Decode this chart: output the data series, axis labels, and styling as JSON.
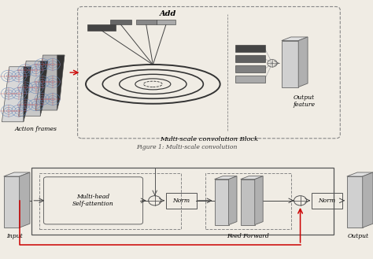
{
  "title": "Figure 1: Multi-scale convolution",
  "top_label_action": "Action frames",
  "top_label_block": "Multi-scale convolution Block",
  "top_label_add": "Add",
  "top_label_output": "Output\nfeature",
  "bottom_label_input": "Input",
  "bottom_label_output": "Output",
  "bottom_label_ff": "Feed Forward",
  "bottom_norm1": "Norm",
  "bottom_norm2": "Norm",
  "bottom_mhsa": "Multi-head\nSelf-attention",
  "bg_color": "#f0ece4",
  "frame_colors": [
    "#c0c0c0",
    "#b0b0b0",
    "#a0a0a0"
  ],
  "bar_colors_top": [
    "#444444",
    "#666666",
    "#888888",
    "#aaaaaa"
  ],
  "bar_colors_out": [
    "#444444",
    "#606060",
    "#808080",
    "#aaaaaa"
  ],
  "ellipse_color": "#222222",
  "dashed_color": "#888888",
  "solid_color": "#555555",
  "red_color": "#cc0000",
  "circle_color": "#6688bb"
}
